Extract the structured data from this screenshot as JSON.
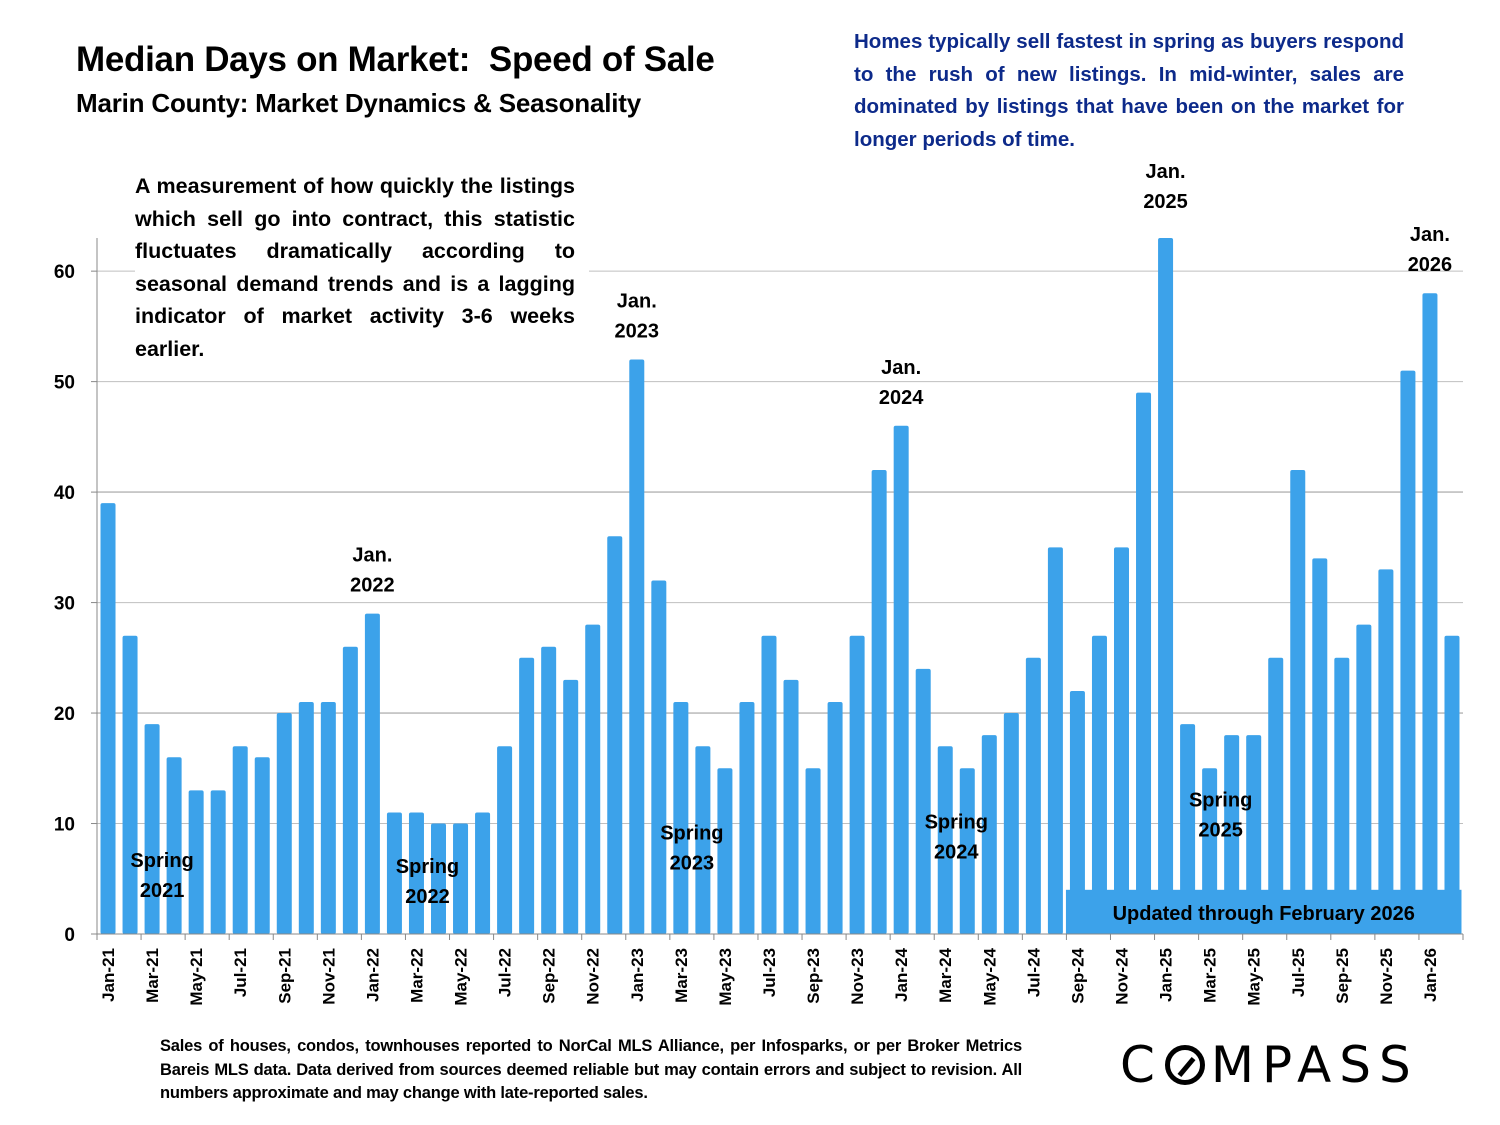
{
  "header": {
    "title": "Median Days on Market:  Speed of Sale",
    "subtitle": "Marin County: Market Dynamics & Seasonality"
  },
  "notes": {
    "seasonality": "Homes typically sell fastest in spring as buyers respond to the rush of new listings. In mid-winter, sales are dominated by listings that have been on the market for longer periods of time.",
    "definition": "A measurement of how quickly the listings which sell go into contract, this statistic fluctuates dramatically according to seasonal demand trends and is a lagging indicator of market activity 3-6 weeks earlier."
  },
  "footer": {
    "disclaimer": "Sales of houses, condos, townhouses reported to NorCal MLS Alliance, per Infosparks, or per Broker Metrics Bareis MLS data. Data derived from sources deemed reliable but may contain errors and subject to revision. All numbers approximate and may change with late-reported sales.",
    "logo_prefix": "C",
    "logo_suffix": "MPASS"
  },
  "colors": {
    "bar": "#3ca2ea",
    "note_blue": "#0d2a8a",
    "grid": "#bfbfbf"
  },
  "chart_data": {
    "type": "bar",
    "title": "Median Days on Market:  Speed of Sale",
    "xlabel": "",
    "ylabel": "",
    "ylim": [
      0,
      63
    ],
    "yticks": [
      0,
      10,
      20,
      30,
      40,
      50,
      60
    ],
    "grid": true,
    "categories": [
      "Jan-21",
      "Feb-21",
      "Mar-21",
      "Apr-21",
      "May-21",
      "Jun-21",
      "Jul-21",
      "Aug-21",
      "Sep-21",
      "Oct-21",
      "Nov-21",
      "Dec-21",
      "Jan-22",
      "Feb-22",
      "Mar-22",
      "Apr-22",
      "May-22",
      "Jun-22",
      "Jul-22",
      "Aug-22",
      "Sep-22",
      "Oct-22",
      "Nov-22",
      "Dec-22",
      "Jan-23",
      "Feb-23",
      "Mar-23",
      "Apr-23",
      "May-23",
      "Jun-23",
      "Jul-23",
      "Aug-23",
      "Sep-23",
      "Oct-23",
      "Nov-23",
      "Dec-23",
      "Jan-24",
      "Feb-24",
      "Mar-24",
      "Apr-24",
      "May-24",
      "Jun-24",
      "Jul-24",
      "Aug-24",
      "Sep-24",
      "Oct-24",
      "Nov-24",
      "Dec-24",
      "Jan-25",
      "Feb-25",
      "Mar-25",
      "Apr-25",
      "May-25",
      "Jun-25",
      "Jul-25",
      "Aug-25",
      "Sep-25",
      "Oct-25",
      "Nov-25",
      "Dec-25",
      "Jan-26",
      "Feb-26"
    ],
    "values": [
      39,
      27,
      19,
      16,
      13,
      13,
      17,
      16,
      20,
      21,
      21,
      26,
      29,
      11,
      11,
      10,
      10,
      11,
      17,
      25,
      26,
      23,
      28,
      36,
      52,
      32,
      21,
      17,
      15,
      21,
      27,
      23,
      15,
      21,
      27,
      42,
      46,
      24,
      17,
      15,
      18,
      20,
      25,
      35,
      22,
      27,
      35,
      49,
      63,
      19,
      15,
      18,
      18,
      25,
      42,
      34,
      25,
      28,
      33,
      51,
      58,
      27
    ],
    "xtick_labels_every": 2,
    "annotations": [
      {
        "text": [
          "Jan.",
          "2022"
        ],
        "at": "Jan-22",
        "kind": "peak"
      },
      {
        "text": [
          "Jan.",
          "2023"
        ],
        "at": "Jan-23",
        "kind": "peak"
      },
      {
        "text": [
          "Jan.",
          "2024"
        ],
        "at": "Jan-24",
        "kind": "peak"
      },
      {
        "text": [
          "Jan.",
          "2025"
        ],
        "at": "Jan-25",
        "kind": "peak"
      },
      {
        "text": [
          "Jan.",
          "2026"
        ],
        "at": "Jan-26",
        "kind": "peak"
      },
      {
        "text": [
          "Spring",
          "2021"
        ],
        "at": "Apr-21",
        "kind": "spring",
        "y": 5.5
      },
      {
        "text": [
          "Spring",
          "2022"
        ],
        "at": "Apr-22",
        "kind": "spring",
        "y": 5
      },
      {
        "text": [
          "Spring",
          "2023"
        ],
        "at": "Apr-23",
        "kind": "spring",
        "y": 8
      },
      {
        "text": [
          "Spring",
          "2024"
        ],
        "at": "Apr-24",
        "kind": "spring",
        "y": 9
      },
      {
        "text": [
          "Spring",
          "2025"
        ],
        "at": "Apr-25",
        "kind": "spring",
        "y": 11
      }
    ],
    "updated_banner": {
      "text": "Updated through February 2026",
      "from": "Sep-24",
      "to": "Feb-26"
    }
  }
}
